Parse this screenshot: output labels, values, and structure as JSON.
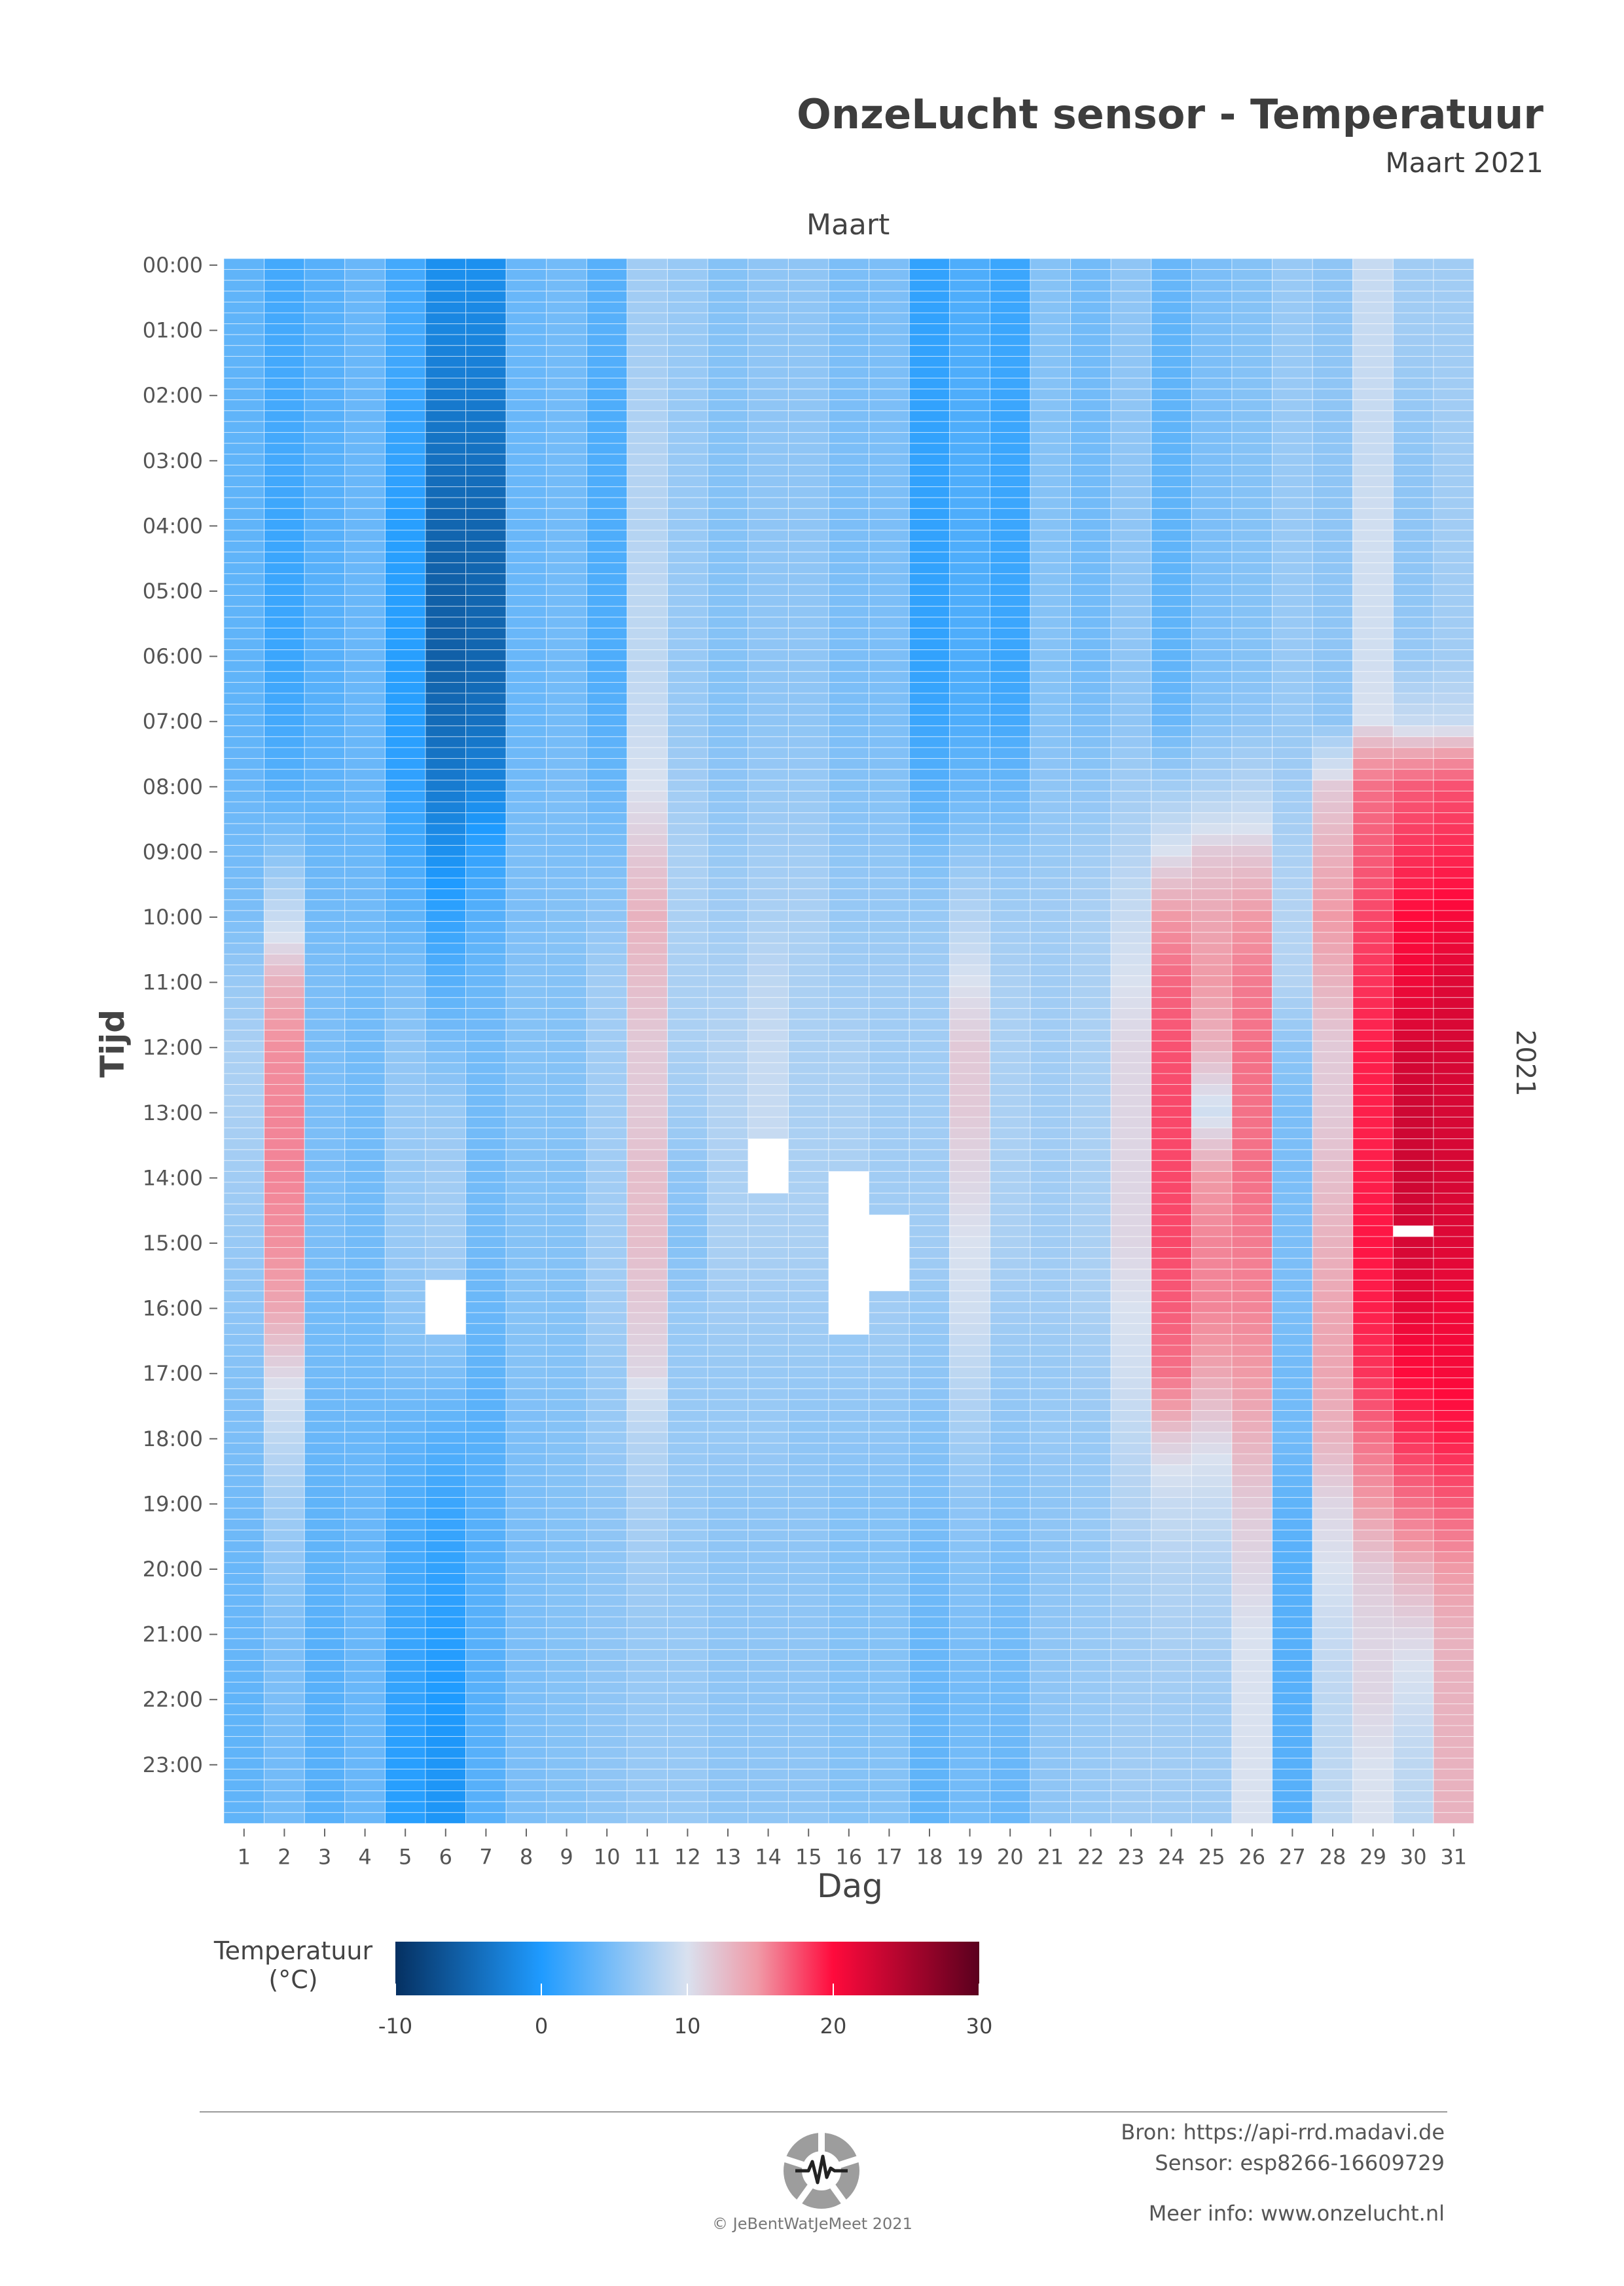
{
  "header": {
    "title": "OnzeLucht sensor - Temperatuur",
    "subtitle": "Maart 2021"
  },
  "chart_data": {
    "type": "heatmap",
    "facet_top": "Maart",
    "facet_right": "2021",
    "xlabel": "Dag",
    "ylabel": "Tijd",
    "x_categories": [
      "1",
      "2",
      "3",
      "4",
      "5",
      "6",
      "7",
      "8",
      "9",
      "10",
      "11",
      "12",
      "13",
      "14",
      "15",
      "16",
      "17",
      "18",
      "19",
      "20",
      "21",
      "22",
      "23",
      "24",
      "25",
      "26",
      "27",
      "28",
      "29",
      "30",
      "31"
    ],
    "y_tick_labels": [
      "00:00",
      "01:00",
      "02:00",
      "03:00",
      "04:00",
      "05:00",
      "06:00",
      "07:00",
      "08:00",
      "09:00",
      "10:00",
      "11:00",
      "12:00",
      "13:00",
      "14:00",
      "15:00",
      "16:00",
      "17:00",
      "18:00",
      "19:00",
      "20:00",
      "21:00",
      "22:00",
      "23:00"
    ],
    "rows_per_hour": 6,
    "color_scale": {
      "title": "Temperatuur (°C)",
      "min": -10,
      "max": 30,
      "ticks": [
        -10,
        0,
        10,
        20,
        30
      ],
      "stops": [
        {
          "value": -10,
          "color": "#053061"
        },
        {
          "value": 0,
          "color": "#1f9bff"
        },
        {
          "value": 10,
          "color": "#d9e1ef"
        },
        {
          "value": 13,
          "color": "#f09aa7"
        },
        {
          "value": 20,
          "color": "#ff0a3c"
        },
        {
          "value": 30,
          "color": "#5a001e"
        }
      ]
    },
    "daily_hourly_temperature": {
      "1": [
        3.5,
        3.5,
        3.5,
        3.5,
        3.5,
        3.5,
        3.5,
        3.5,
        4,
        4.5,
        5,
        6.5,
        7.5,
        7.5,
        7,
        6.5,
        6,
        5.5,
        5,
        4.5,
        4,
        4,
        3.5,
        3.5
      ],
      "2": [
        2,
        2,
        2,
        2,
        1.5,
        1.5,
        1.5,
        2,
        3,
        5.5,
        9,
        12,
        13.5,
        14,
        14,
        13.5,
        12.5,
        10.5,
        8.5,
        7,
        6,
        5,
        5,
        4.5
      ],
      "3": [
        3,
        3,
        3,
        3,
        3,
        3,
        3,
        3,
        3.5,
        4,
        4.5,
        5,
        5,
        5,
        5,
        5,
        4.5,
        4.5,
        4,
        3.5,
        3.5,
        3,
        3,
        3
      ],
      "4": [
        4,
        4,
        4,
        4,
        4,
        4,
        4,
        4,
        4,
        4,
        4.5,
        4.5,
        4.5,
        4.5,
        4.5,
        4.5,
        4.5,
        4.5,
        4,
        4,
        4,
        4,
        4,
        4
      ],
      "5": [
        2,
        2,
        1.5,
        1,
        0.5,
        0.5,
        0.5,
        0.5,
        1,
        2,
        3.5,
        5,
        6,
        6.5,
        6.5,
        6.5,
        6,
        5,
        3.5,
        2.5,
        2,
        1.5,
        1,
        0.5
      ],
      "6": [
        -1,
        -2,
        -3,
        -4,
        -5,
        -5.5,
        -5.5,
        -4.5,
        -3,
        -1,
        1,
        3,
        5,
        6.5,
        7,
        7,
        6.5,
        5,
        3,
        1.5,
        1,
        0.5,
        0,
        -0.5
      ],
      "7": [
        -1,
        -2,
        -3,
        -4,
        -5,
        -5,
        -5,
        -4,
        -2,
        1,
        3,
        4,
        4.5,
        4.5,
        4.5,
        4.5,
        4,
        3.5,
        3,
        3,
        3,
        3,
        3,
        3
      ],
      "8": [
        4,
        4,
        4,
        4,
        4,
        4,
        4,
        4,
        4.5,
        5,
        5,
        5.5,
        5.5,
        5.5,
        5.5,
        5.5,
        5.5,
        5.5,
        5,
        5,
        5,
        5,
        5,
        5
      ],
      "9": [
        4.5,
        4.5,
        4.5,
        4.5,
        4.5,
        4.5,
        4.5,
        4.5,
        5,
        5,
        5.5,
        5.5,
        5.5,
        5.5,
        5.5,
        5.5,
        5.5,
        5.5,
        5.5,
        5.5,
        5.5,
        5.5,
        5.5,
        5.5
      ],
      "10": [
        3,
        3,
        2.5,
        2.5,
        2.5,
        2.5,
        2.5,
        3,
        4,
        5,
        6,
        7,
        7,
        7,
        7,
        7,
        7,
        6.5,
        6.5,
        6,
        6,
        6,
        6,
        6
      ],
      "11": [
        7,
        7,
        7.5,
        8,
        8,
        8.5,
        8.5,
        9,
        10,
        11,
        12,
        11.5,
        11,
        11,
        11.5,
        11.5,
        11,
        10.5,
        8,
        7.5,
        7,
        6.5,
        6.5,
        6.5
      ],
      "12": [
        6.5,
        6.5,
        6.5,
        6.5,
        6.5,
        6.5,
        6.5,
        6.5,
        7,
        7.5,
        7.5,
        7.5,
        7.5,
        7,
        6,
        5.5,
        6.5,
        6.5,
        6.5,
        6.5,
        6.5,
        6.5,
        6.5,
        6.5
      ],
      "13": [
        5.5,
        5.5,
        5.5,
        5.5,
        5.5,
        5.5,
        5.5,
        5.5,
        6,
        6.5,
        7,
        7.5,
        8,
        8,
        7.5,
        7.5,
        7,
        6.5,
        6.5,
        6,
        6,
        6,
        6,
        6
      ],
      "14": [
        6,
        6,
        6,
        6,
        6,
        6,
        6,
        6,
        6.5,
        7,
        7.5,
        8.5,
        9,
        9,
        null,
        7.5,
        7,
        6.5,
        6.5,
        6,
        6,
        6,
        6,
        6
      ],
      "15": [
        6,
        6,
        6,
        6,
        6,
        6,
        6,
        6,
        6.5,
        7,
        7.5,
        7.5,
        7.5,
        7.5,
        7.5,
        7.5,
        7,
        6.5,
        6,
        6,
        6,
        6,
        6,
        6
      ],
      "16": [
        5,
        5,
        5,
        5,
        5,
        5,
        5,
        5,
        5.5,
        6,
        6.5,
        7,
        7.5,
        7.5,
        null,
        null,
        null,
        6.5,
        6,
        5.5,
        5.5,
        5.5,
        5.5,
        5.5
      ],
      "17": [
        5,
        5,
        5,
        5,
        5,
        5,
        5,
        5,
        5.5,
        6,
        6.5,
        7,
        7,
        7,
        7,
        null,
        7,
        6.5,
        6,
        5.5,
        5.5,
        5.5,
        5.5,
        5.5
      ],
      "18": [
        1,
        1,
        1,
        1,
        1,
        1,
        1,
        1.5,
        3,
        5,
        6.5,
        7,
        7,
        7,
        7,
        7,
        6.5,
        6,
        5.5,
        5,
        4.5,
        4,
        4,
        3.5
      ],
      "19": [
        2.5,
        2.5,
        2.5,
        2.5,
        2.5,
        2.5,
        2.5,
        2.5,
        4,
        6,
        8,
        10,
        11,
        11,
        10.5,
        10,
        9.5,
        8.5,
        7,
        6,
        5.5,
        5,
        4.5,
        4.5
      ],
      "20": [
        1.5,
        1.5,
        1.5,
        1.5,
        1.5,
        1.5,
        1.5,
        2,
        4,
        6,
        7,
        7.5,
        7.5,
        7.5,
        7.5,
        7.5,
        7,
        6.5,
        6,
        5.5,
        5,
        4.5,
        4.5,
        4
      ],
      "21": [
        5.5,
        5.5,
        5.5,
        5.5,
        5.5,
        5.5,
        5.5,
        5.5,
        6,
        6.5,
        7,
        7,
        7,
        7,
        7,
        7,
        7,
        6.5,
        6.5,
        6,
        6,
        6,
        6,
        6
      ],
      "22": [
        4.5,
        4.5,
        4.5,
        4.5,
        4.5,
        4.5,
        4.5,
        5,
        6,
        7,
        7.5,
        7.5,
        7.5,
        7.5,
        7.5,
        7.5,
        7.5,
        7,
        6.5,
        6.5,
        6.5,
        6.5,
        6.5,
        6.5
      ],
      "23": [
        6,
        6,
        6,
        6,
        6,
        6,
        6,
        6,
        7,
        8,
        9,
        10,
        10.5,
        10.5,
        10.5,
        10.5,
        10,
        9.5,
        8.5,
        8,
        7.5,
        7,
        7,
        7
      ],
      "24": [
        4,
        3.5,
        3.5,
        3.5,
        3.5,
        3.5,
        3.5,
        4,
        7,
        10,
        13,
        15.5,
        16.5,
        17,
        17,
        17,
        16,
        15,
        11,
        9,
        8,
        7.5,
        7,
        7
      ],
      "25": [
        5,
        5,
        5,
        5,
        5,
        5,
        5,
        5.5,
        7.5,
        11,
        12.5,
        13,
        12,
        9.5,
        13,
        14,
        14,
        12.5,
        10.5,
        9,
        8,
        7.5,
        7,
        7
      ],
      "26": [
        5.5,
        5.5,
        5.5,
        5.5,
        5.5,
        5.5,
        5.5,
        6,
        8,
        11,
        13,
        14.5,
        15,
        15,
        15,
        14.5,
        14,
        13,
        12,
        11,
        10.5,
        10,
        10,
        10
      ],
      "27": [
        6.5,
        6.5,
        6.5,
        6.5,
        6.5,
        6.5,
        6.5,
        6.5,
        7,
        7.5,
        8,
        8,
        6,
        5,
        5,
        5,
        5,
        4.5,
        4.5,
        3.5,
        3,
        3,
        3,
        3
      ],
      "28": [
        6,
        6,
        6,
        6,
        6,
        6,
        6,
        6,
        11,
        12,
        13,
        12,
        11,
        11,
        11.5,
        12,
        12.5,
        12.5,
        12,
        10.5,
        10,
        9,
        8.5,
        8.5
      ],
      "29": [
        9,
        9,
        9,
        9,
        9.5,
        9.5,
        9.5,
        10,
        15,
        16,
        17,
        18,
        19,
        19,
        19,
        19.5,
        19,
        18,
        15,
        13,
        11,
        10.5,
        10.5,
        10
      ],
      "30": [
        7,
        7,
        6.5,
        6,
        6,
        6,
        6.5,
        9,
        16,
        18,
        20,
        21,
        22.5,
        23,
        23,
        22.5,
        21.5,
        20,
        18,
        15,
        12,
        10.5,
        9.5,
        8.5
      ],
      "31": [
        7,
        7,
        7,
        7,
        7,
        7,
        7,
        9,
        16.5,
        18.5,
        20.5,
        22,
        22.5,
        22.5,
        22.5,
        22,
        21,
        20.5,
        19,
        16,
        13,
        12,
        12,
        12
      ]
    },
    "missing_cells": [
      {
        "day": "6",
        "from": "15:40",
        "to": "16:30"
      },
      {
        "day": "14",
        "from": "13:25",
        "to": "14:15"
      },
      {
        "day": "16",
        "from": "14:25",
        "to": "16:30"
      },
      {
        "day": "17",
        "from": "14:35",
        "to": "15:45"
      },
      {
        "day": "30",
        "from": "14:50",
        "to": "15:00"
      }
    ]
  },
  "footer": {
    "source": "Bron: https://api-rrd.madavi.de",
    "sensor": "Sensor: esp8266-16609729",
    "more_info": "Meer info: www.onzelucht.nl",
    "copyright": "© JeBentWatJeMeet 2021",
    "logo_icon": "onzelucht-logo-icon"
  }
}
